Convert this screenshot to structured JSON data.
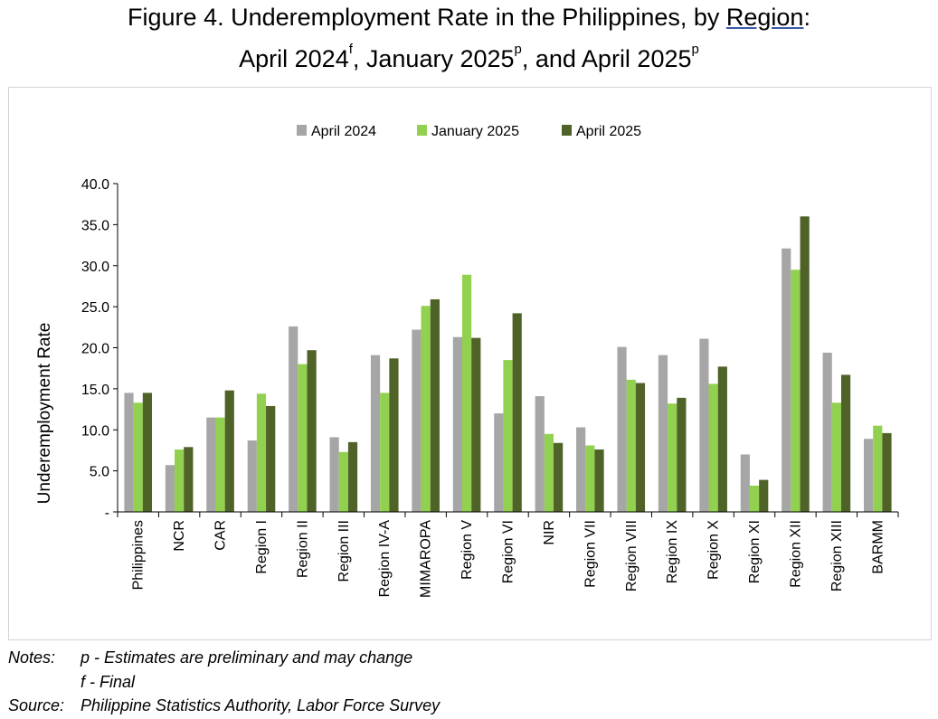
{
  "chart_data": {
    "type": "bar",
    "title_line1_prefix": "Figure 4. Underemployment Rate in the Philippines, by ",
    "title_line1_link": "Region",
    "title_line1_suffix": ":",
    "title_line2": [
      {
        "text": "April 2024",
        "sup": "f"
      },
      {
        "text": ", January 2025",
        "sup": "p"
      },
      {
        "text": ", and April 2025",
        "sup": "p"
      }
    ],
    "ylabel": "Underemployment Rate",
    "ylim": [
      0,
      40
    ],
    "yticks": [
      "-",
      "5.0",
      "10.0",
      "15.0",
      "20.0",
      "25.0",
      "30.0",
      "35.0",
      "40.0"
    ],
    "legend_position": "top-center",
    "grid": false,
    "categories": [
      "Philippines",
      "NCR",
      "CAR",
      "Region I",
      "Region II",
      "Region III",
      "Region IV-A",
      "MIMAROPA",
      "Region V",
      "Region VI",
      "NIR",
      "Region VII",
      "Region VIII",
      "Region IX",
      "Region X",
      "Region XI",
      "Region XII",
      "Region XIII",
      "BARMM"
    ],
    "series": [
      {
        "name": "April 2024",
        "color": "#a6a6a6",
        "values": [
          14.5,
          5.7,
          11.5,
          8.7,
          22.6,
          9.1,
          19.1,
          22.2,
          21.3,
          12.0,
          14.1,
          10.3,
          20.1,
          19.1,
          21.1,
          7.0,
          32.1,
          19.4,
          8.9
        ]
      },
      {
        "name": "January 2025",
        "color": "#92d050",
        "values": [
          13.3,
          7.6,
          11.5,
          14.4,
          18.0,
          7.3,
          14.5,
          25.1,
          28.9,
          18.5,
          9.5,
          8.1,
          16.1,
          13.2,
          15.6,
          3.2,
          29.5,
          13.3,
          10.5
        ]
      },
      {
        "name": "April 2025",
        "color": "#4f6228",
        "values": [
          14.5,
          7.9,
          14.8,
          12.9,
          19.7,
          8.5,
          18.7,
          25.9,
          21.2,
          24.2,
          8.4,
          7.6,
          15.7,
          13.9,
          17.7,
          3.9,
          36.0,
          16.7,
          9.6
        ]
      }
    ]
  },
  "notes": {
    "label": "Notes:",
    "line1": "p - Estimates are preliminary and may change",
    "line2": "f - Final",
    "source_label": "Source:",
    "source": "Philippine Statistics Authority, Labor Force Survey"
  }
}
